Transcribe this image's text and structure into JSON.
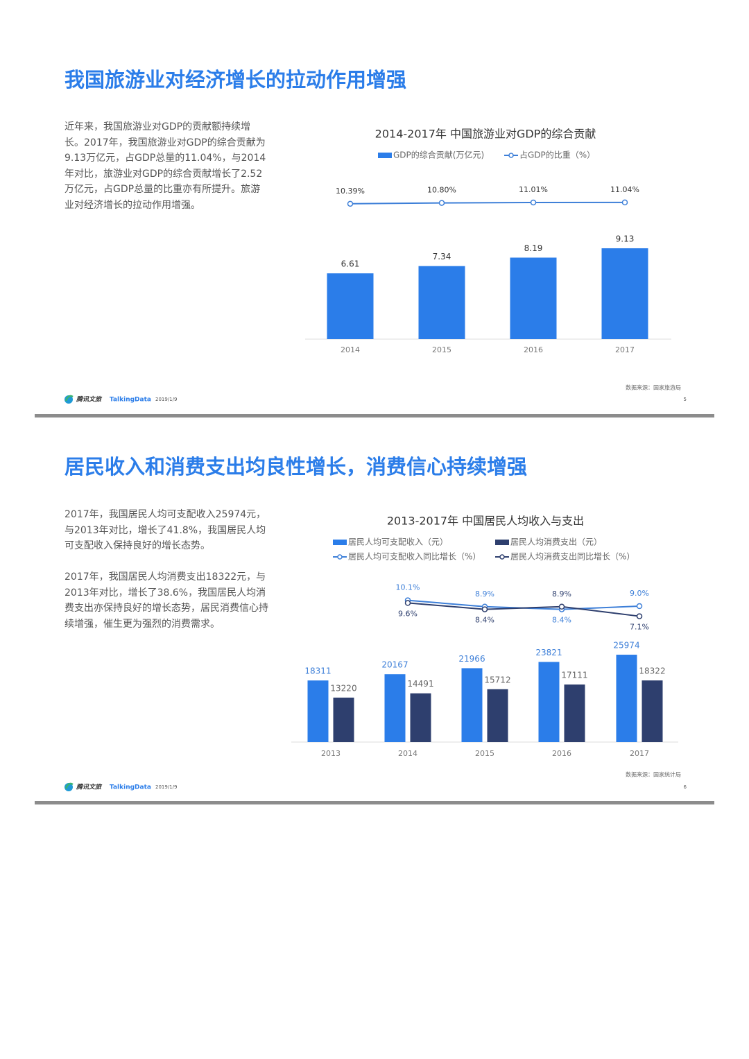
{
  "slides": [
    {
      "title": "我国旅游业对经济增长的拉动作用增强",
      "paragraphs": [
        "近年来，我国旅游业对GDP的贡献额持续增长。2017年，我国旅游业对GDP的综合贡献为9.13万亿元，占GDP总量的11.04%，与2014年对比，旅游业对GDP的综合贡献增长了2.52万亿元，占GDP总量的比重亦有所提升。旅游业对经济增长的拉动作用增强。"
      ],
      "footer": {
        "brand": "腾讯文旅",
        "partner": "TalkingData",
        "date": "2019/1/9",
        "page": 5,
        "source": "数据来源：国家旅游局"
      }
    },
    {
      "title": "居民收入和消费支出均良性增长，消费信心持续增强",
      "paragraphs": [
        "2017年，我国居民人均可支配收入25974元，与2013年对比，增长了41.8%，我国居民人均可支配收入保持良好的增长态势。",
        "2017年，我国居民人均消费支出18322元，与2013年对比，增长了38.6%，我国居民人均消费支出亦保持良好的增长态势，居民消费信心持续增强，催生更为强烈的消费需求。"
      ],
      "footer": {
        "brand": "腾讯文旅",
        "partner": "TalkingData",
        "date": "2019/1/9",
        "page": 6,
        "source": "数据来源：国家统计局"
      }
    }
  ],
  "chart_data": [
    {
      "type": "bar",
      "title": "2014-2017年 中国旅游业对GDP的综合贡献",
      "categories": [
        "2014",
        "2015",
        "2016",
        "2017"
      ],
      "ylim": [
        0,
        10
      ],
      "y2lim": [
        0,
        12
      ],
      "series": [
        {
          "name": "GDP的综合贡献(万亿元)",
          "type": "bar",
          "color": "#2b7de9",
          "values": [
            6.61,
            7.34,
            8.19,
            9.13
          ]
        },
        {
          "name": "占GDP的比重（%）",
          "type": "line",
          "axis": "y2",
          "color": "#3d7fd8",
          "values": [
            10.39,
            10.8,
            11.01,
            11.04
          ],
          "value_labels": [
            "10.39%",
            "10.80%",
            "11.01%",
            "11.04%"
          ]
        }
      ]
    },
    {
      "type": "bar",
      "title": "2013-2017年 中国居民人均收入与支出",
      "categories": [
        "2013",
        "2014",
        "2015",
        "2016",
        "2017"
      ],
      "ylim": [
        0,
        30000
      ],
      "y2lim": [
        0,
        12
      ],
      "series": [
        {
          "name": "居民人均可支配收入（元）",
          "type": "bar",
          "color": "#2b7de9",
          "values": [
            18311,
            20167,
            21966,
            23821,
            25974
          ]
        },
        {
          "name": "居民人均消费支出（元）",
          "type": "bar",
          "color": "#2e3f6e",
          "values": [
            13220,
            14491,
            15712,
            17111,
            18322
          ]
        },
        {
          "name": "居民人均可支配收入同比增长（%）",
          "type": "line",
          "axis": "y2",
          "color": "#3d7fd8",
          "values": [
            null,
            10.1,
            8.9,
            8.4,
            9.0
          ],
          "value_labels": [
            null,
            "10.1%",
            "8.9%",
            "8.4%",
            "9.0%"
          ]
        },
        {
          "name": "居民人均消费支出同比增长（%）",
          "type": "line",
          "axis": "y2",
          "color": "#2e3f6e",
          "values": [
            null,
            9.6,
            8.4,
            8.9,
            7.1
          ],
          "value_labels": [
            null,
            "9.6%",
            "8.4%",
            "8.9%",
            "7.1%"
          ]
        }
      ]
    }
  ]
}
